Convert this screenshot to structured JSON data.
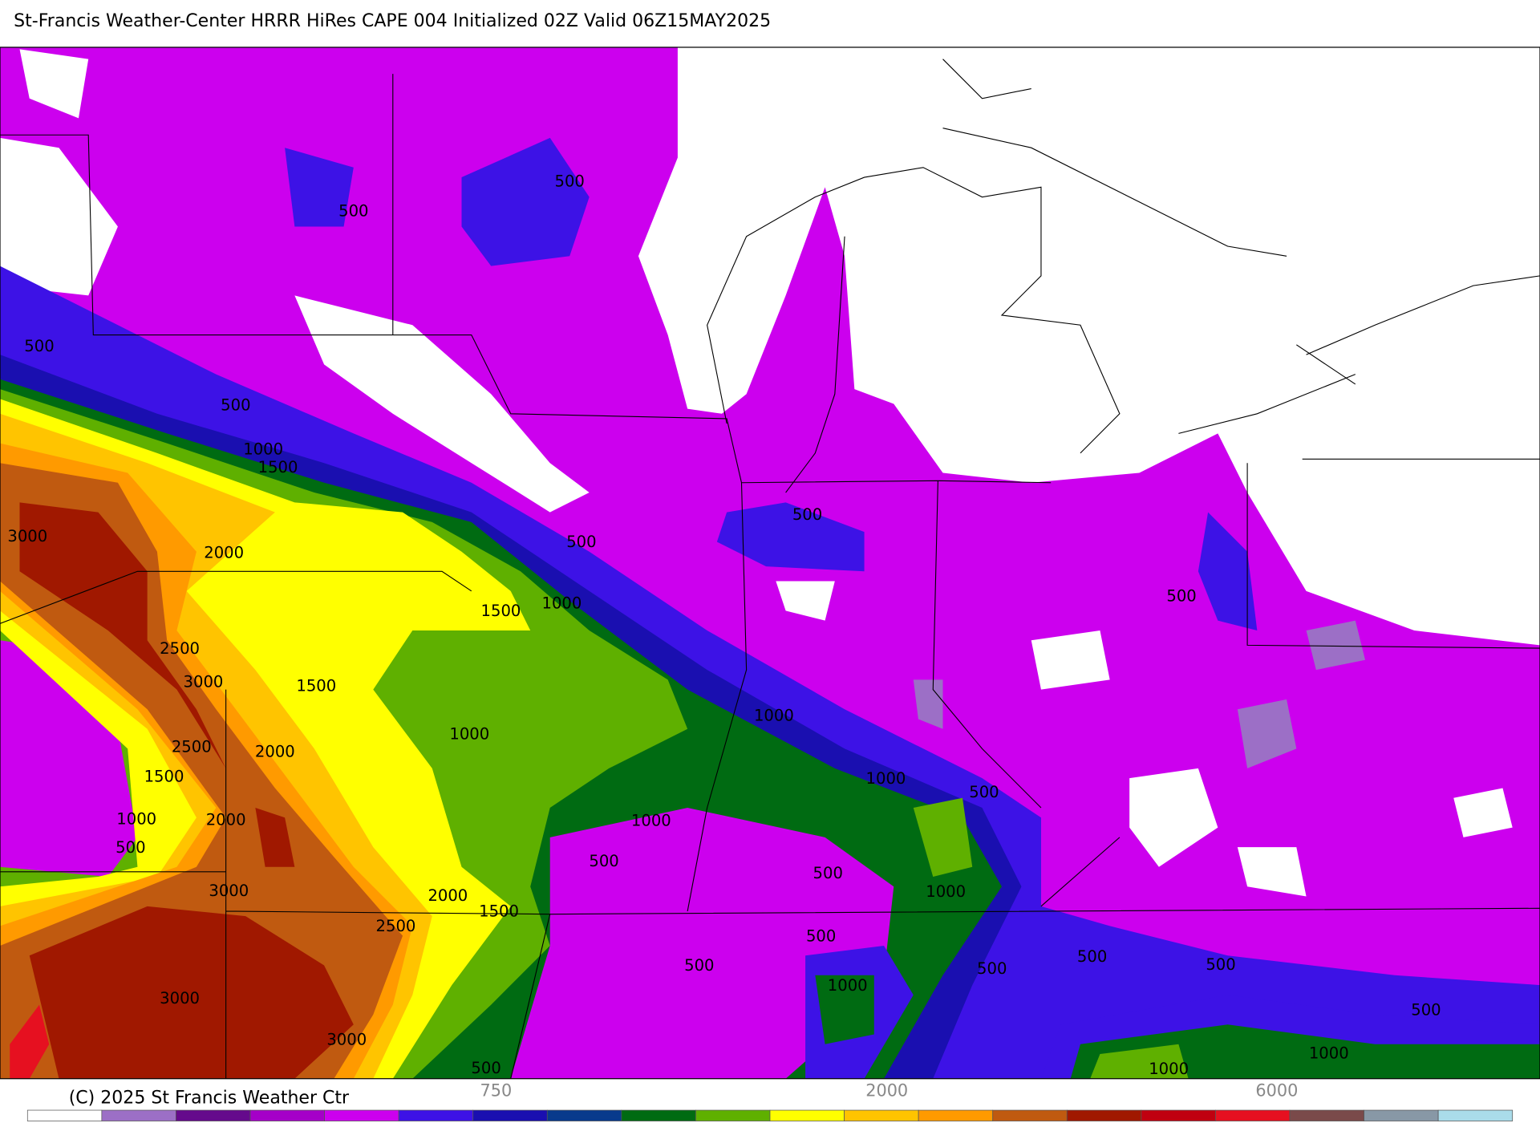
{
  "header": {
    "title": "St-Francis Weather-Center HRRR HiRes CAPE  004 Initialized  02Z Valid 06Z15MAY2025"
  },
  "map": {
    "contour_labels": [
      "500",
      "500",
      "500",
      "500",
      "1000",
      "1500",
      "3000",
      "2000",
      "500",
      "500",
      "1500",
      "1000",
      "500",
      "2500",
      "3000",
      "1500",
      "1000",
      "1000",
      "2500",
      "2000",
      "1500",
      "1000",
      "500",
      "1000",
      "2000",
      "1000",
      "500",
      "500",
      "500",
      "3000",
      "2000",
      "1000",
      "1500",
      "2500",
      "500",
      "500",
      "500",
      "500",
      "500",
      "1000",
      "3000",
      "500",
      "3000",
      "1000",
      "1000",
      "500"
    ]
  },
  "colorbar": {
    "colors": [
      "#ffffff",
      "#9c6fc6",
      "#650a8c",
      "#a500c8",
      "#cc00ee",
      "#3d12e6",
      "#1a0fb0",
      "#083a8c",
      "#006b12",
      "#5fb000",
      "#ffff00",
      "#ffc400",
      "#ff9a00",
      "#c05a10",
      "#a01800",
      "#c00010",
      "#e61020",
      "#7a4a4a",
      "#8898a6",
      "#aadcea"
    ],
    "labels": [
      "750",
      "2000",
      "6000"
    ]
  },
  "footer": {
    "copyright": "(C) 2025 St Francis Weather Ctr"
  }
}
